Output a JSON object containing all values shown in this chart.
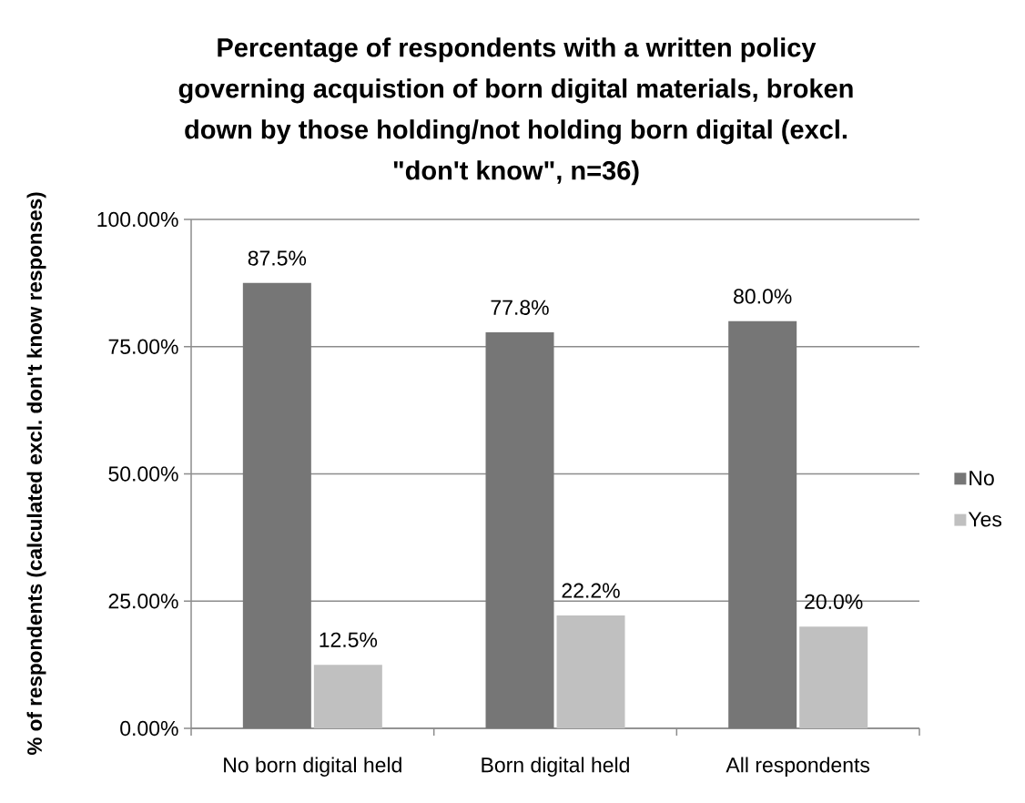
{
  "chart_data": {
    "type": "bar",
    "title": "Percentage of respondents with a written policy governing acquistion of born digital materials, broken down by those holding/not holding born digital (excl. \"don't know\", n=36)",
    "ylabel": "% of respondents (calculated excl. don't know responses)",
    "categories": [
      "No born digital held",
      "Born digital held",
      "All respondents"
    ],
    "series": [
      {
        "name": "No",
        "color": "#767676",
        "values": [
          87.5,
          77.8,
          80.0
        ],
        "value_labels": [
          "87.5%",
          "77.8%",
          "80.0%"
        ]
      },
      {
        "name": "Yes",
        "color": "#c0c0c0",
        "values": [
          12.5,
          22.2,
          20.0
        ],
        "value_labels": [
          "12.5%",
          "22.2%",
          "20.0%"
        ]
      }
    ],
    "ylim": [
      0,
      100
    ],
    "yticks": [
      {
        "value": 0,
        "label": "0.00%"
      },
      {
        "value": 25,
        "label": "25.00%"
      },
      {
        "value": 50,
        "label": "50.00%"
      },
      {
        "value": 75,
        "label": "75.00%"
      },
      {
        "value": 100,
        "label": "100.00%"
      }
    ],
    "grid": "y",
    "legend": "right"
  }
}
